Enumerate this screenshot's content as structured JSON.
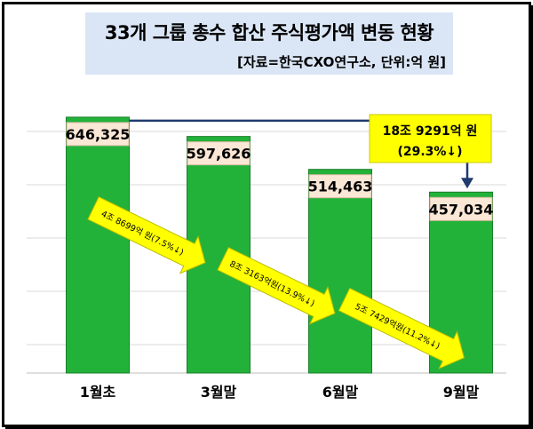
{
  "title": "33개 그룹 총수 합산 주식평가액 변동 현황",
  "source": "[자료=한국CXO연구소, 단위:억 원]",
  "colors": {
    "bar": "#22b23a",
    "bar_label_bg": "#fbe7d6",
    "callout_bg": "#ffff00",
    "arrow_fill": "#ffff00",
    "connector": "#1f3a6e",
    "grid": "#d9d9d9"
  },
  "chart_data": {
    "type": "bar",
    "title": "33개 그룹 총수 합산 주식평가액 변동 현황",
    "categories": [
      "1월초",
      "3월말",
      "6월말",
      "9월말"
    ],
    "values": [
      646325,
      597626,
      514463,
      457034
    ],
    "value_labels": [
      "646,325",
      "597,626",
      "514,463",
      "457,034"
    ],
    "ylim": [
      0,
      700000
    ],
    "grid": true,
    "annotations": {
      "total_change": [
        "18조 9291억 원",
        "(29.3%↓)"
      ],
      "step_changes": [
        "4조 8699억 원(7.5%↓)",
        "8조 3163억원(13.9%↓)",
        "5조 7429억원(11.2%↓)"
      ]
    }
  }
}
